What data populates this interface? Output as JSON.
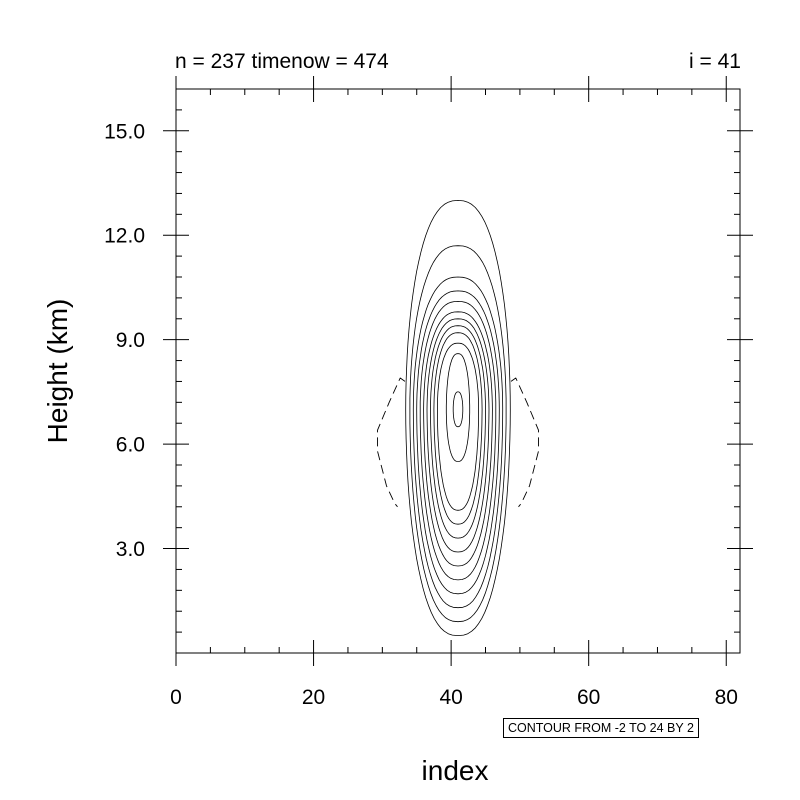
{
  "chart_data": {
    "type": "contour",
    "subtitle_left": "n = 237 timenow = 474",
    "subtitle_right": "i = 41",
    "xlabel": "index",
    "ylabel": "Height (km)",
    "xlim": [
      0,
      82
    ],
    "ylim": [
      0,
      16.2
    ],
    "x_ticks": [
      {
        "value": 0,
        "label": "0"
      },
      {
        "value": 20,
        "label": "20"
      },
      {
        "value": 40,
        "label": "40"
      },
      {
        "value": 60,
        "label": "60"
      },
      {
        "value": 80,
        "label": "80"
      }
    ],
    "x_minor_step": 5,
    "y_ticks": [
      {
        "value": 3,
        "label": "3.0"
      },
      {
        "value": 6,
        "label": "6.0"
      },
      {
        "value": 9,
        "label": "9.0"
      },
      {
        "value": 12,
        "label": "12.0"
      },
      {
        "value": 15,
        "label": "15.0"
      }
    ],
    "y_minor_step": 0.6,
    "info_label": "CONTOUR FROM -2 TO 24 BY 2",
    "contour_levels": {
      "min": -2,
      "max": 24,
      "interval": 2
    },
    "line_color": "#000000",
    "grid": false,
    "positive_contours": [
      {
        "level": 2,
        "x_center": 41,
        "half_width": 7.6,
        "y_bottom": 0.5,
        "y_top": 13.0
      },
      {
        "level": 4,
        "x_center": 41,
        "half_width": 7.0,
        "y_bottom": 0.9,
        "y_top": 11.7
      },
      {
        "level": 6,
        "x_center": 41,
        "half_width": 6.5,
        "y_bottom": 1.3,
        "y_top": 10.8
      },
      {
        "level": 8,
        "x_center": 41,
        "half_width": 6.0,
        "y_bottom": 1.7,
        "y_top": 10.4
      },
      {
        "level": 10,
        "x_center": 41,
        "half_width": 5.5,
        "y_bottom": 2.1,
        "y_top": 10.1
      },
      {
        "level": 12,
        "x_center": 41,
        "half_width": 5.0,
        "y_bottom": 2.5,
        "y_top": 9.8
      },
      {
        "level": 14,
        "x_center": 41,
        "half_width": 4.5,
        "y_bottom": 2.9,
        "y_top": 9.6
      },
      {
        "level": 16,
        "x_center": 41,
        "half_width": 4.0,
        "y_bottom": 3.3,
        "y_top": 9.4
      },
      {
        "level": 18,
        "x_center": 41,
        "half_width": 3.5,
        "y_bottom": 3.7,
        "y_top": 9.2
      },
      {
        "level": 20,
        "x_center": 41,
        "half_width": 3.0,
        "y_bottom": 4.1,
        "y_top": 8.9
      },
      {
        "level": 22,
        "x_center": 41,
        "half_width": 1.7,
        "y_bottom": 5.5,
        "y_top": 8.6
      },
      {
        "level": 24,
        "x_center": 41,
        "half_width": 0.7,
        "y_bottom": 6.5,
        "y_top": 7.5
      }
    ],
    "negative_contours": [
      {
        "level": -2,
        "side": "left",
        "points": [
          [
            33.3,
            7.8
          ],
          [
            32.6,
            7.9
          ],
          [
            31.0,
            7.2
          ],
          [
            29.3,
            6.4
          ],
          [
            29.3,
            5.8
          ],
          [
            30.6,
            4.8
          ],
          [
            31.8,
            4.3
          ],
          [
            32.2,
            4.2
          ]
        ]
      },
      {
        "level": -2,
        "side": "right",
        "points": [
          [
            48.7,
            7.8
          ],
          [
            49.4,
            7.9
          ],
          [
            51.0,
            7.2
          ],
          [
            52.7,
            6.4
          ],
          [
            52.7,
            5.8
          ],
          [
            51.4,
            4.8
          ],
          [
            50.2,
            4.3
          ],
          [
            49.8,
            4.2
          ]
        ]
      }
    ]
  }
}
